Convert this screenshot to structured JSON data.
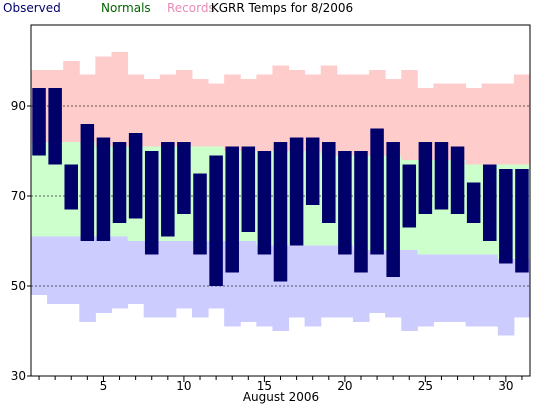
{
  "chart_data": {
    "type": "bar",
    "title": "KGRR Temps for 8/2006",
    "xlabel": "August 2006",
    "ylabel": "",
    "ylim": [
      30,
      108
    ],
    "xlim": [
      0.5,
      31.5
    ],
    "y_ticks": [
      30,
      50,
      70,
      90
    ],
    "x_ticks": [
      5,
      10,
      15,
      20,
      25,
      30
    ],
    "grid": "horizontal dashed at 50, 70, 90",
    "legend_placement": "top-left",
    "legend": [
      {
        "label": "Observed",
        "color": "#00006b"
      },
      {
        "label": "Normals",
        "color": "#006400"
      },
      {
        "label": "Records",
        "color": "#e88ab8"
      }
    ],
    "colors": {
      "records_fill": "#ffcccc",
      "normals_fill": "#ccffcc",
      "low_fill": "#ccccff",
      "observed_fill": "#00006b",
      "grid": "#000000"
    },
    "days": [
      1,
      2,
      3,
      4,
      5,
      6,
      7,
      8,
      9,
      10,
      11,
      12,
      13,
      14,
      15,
      16,
      17,
      18,
      19,
      20,
      21,
      22,
      23,
      24,
      25,
      26,
      27,
      28,
      29,
      30,
      31
    ],
    "record_high": [
      98,
      98,
      100,
      97,
      101,
      102,
      97,
      96,
      97,
      98,
      96,
      95,
      97,
      96,
      97,
      99,
      98,
      97,
      99,
      97,
      97,
      98,
      96,
      98,
      94,
      95,
      95,
      94,
      95,
      95,
      97
    ],
    "normal_high": [
      82,
      82,
      82,
      82,
      81,
      81,
      81,
      81,
      81,
      81,
      81,
      81,
      80,
      80,
      80,
      80,
      80,
      80,
      79,
      79,
      79,
      79,
      79,
      78,
      78,
      78,
      78,
      77,
      77,
      77,
      77
    ],
    "normal_low": [
      61,
      61,
      61,
      61,
      61,
      61,
      60,
      60,
      60,
      60,
      60,
      60,
      60,
      60,
      59,
      59,
      59,
      59,
      59,
      59,
      58,
      58,
      58,
      58,
      57,
      57,
      57,
      57,
      57,
      56,
      56
    ],
    "record_low": [
      48,
      46,
      46,
      42,
      44,
      45,
      46,
      43,
      43,
      45,
      43,
      45,
      41,
      42,
      41,
      40,
      43,
      41,
      43,
      43,
      42,
      44,
      43,
      40,
      41,
      42,
      42,
      41,
      41,
      39,
      43
    ],
    "observed_high": [
      94,
      94,
      77,
      86,
      83,
      82,
      84,
      80,
      82,
      82,
      75,
      79,
      81,
      81,
      80,
      82,
      83,
      83,
      82,
      80,
      80,
      85,
      82,
      77,
      82,
      82,
      81,
      73,
      77,
      76,
      76
    ],
    "observed_low": [
      79,
      77,
      67,
      60,
      60,
      64,
      65,
      57,
      61,
      66,
      57,
      50,
      53,
      62,
      57,
      51,
      59,
      68,
      64,
      57,
      53,
      57,
      52,
      63,
      66,
      67,
      66,
      64,
      60,
      55,
      53
    ]
  }
}
